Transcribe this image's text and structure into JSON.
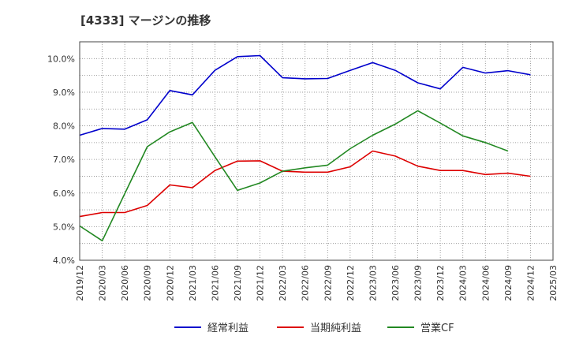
{
  "chart_data": {
    "type": "line",
    "title": "[4333]  マージンの推移",
    "xlabel": "",
    "ylabel": "",
    "ylim": [
      4.0,
      10.5
    ],
    "y_ticks": [
      4.0,
      5.0,
      6.0,
      7.0,
      8.0,
      9.0,
      10.0
    ],
    "y_tick_labels": [
      "4.0%",
      "5.0%",
      "6.0%",
      "7.0%",
      "8.0%",
      "9.0%",
      "10.0%"
    ],
    "categories": [
      "2019/12",
      "2020/03",
      "2020/06",
      "2020/09",
      "2020/12",
      "2021/03",
      "2021/06",
      "2021/09",
      "2021/12",
      "2022/03",
      "2022/06",
      "2022/09",
      "2022/12",
      "2023/03",
      "2023/06",
      "2023/09",
      "2023/12",
      "2024/03",
      "2024/06",
      "2024/09",
      "2024/12",
      "2025/03"
    ],
    "grid": true,
    "legend_position": "bottom",
    "series": [
      {
        "name": "経常利益",
        "color": "#0000cc",
        "values": [
          7.72,
          7.92,
          7.9,
          8.18,
          9.05,
          8.92,
          9.65,
          10.06,
          10.09,
          9.43,
          9.4,
          9.41,
          9.65,
          9.88,
          9.65,
          9.28,
          9.1,
          9.74,
          9.57,
          9.64,
          9.52,
          null
        ]
      },
      {
        "name": "当期純利益",
        "color": "#dd0000",
        "values": [
          5.3,
          5.42,
          5.42,
          5.63,
          6.24,
          6.16,
          6.67,
          6.95,
          6.96,
          6.65,
          6.62,
          6.62,
          6.78,
          7.25,
          7.1,
          6.8,
          6.67,
          6.67,
          6.55,
          6.59,
          6.5,
          null
        ]
      },
      {
        "name": "営業CF",
        "color": "#228822",
        "values": [
          5.02,
          4.58,
          5.98,
          7.38,
          7.82,
          8.1,
          7.08,
          6.08,
          6.3,
          6.65,
          6.75,
          6.83,
          7.32,
          7.72,
          8.05,
          8.45,
          8.08,
          7.7,
          7.5,
          7.25,
          null,
          null
        ]
      }
    ]
  }
}
